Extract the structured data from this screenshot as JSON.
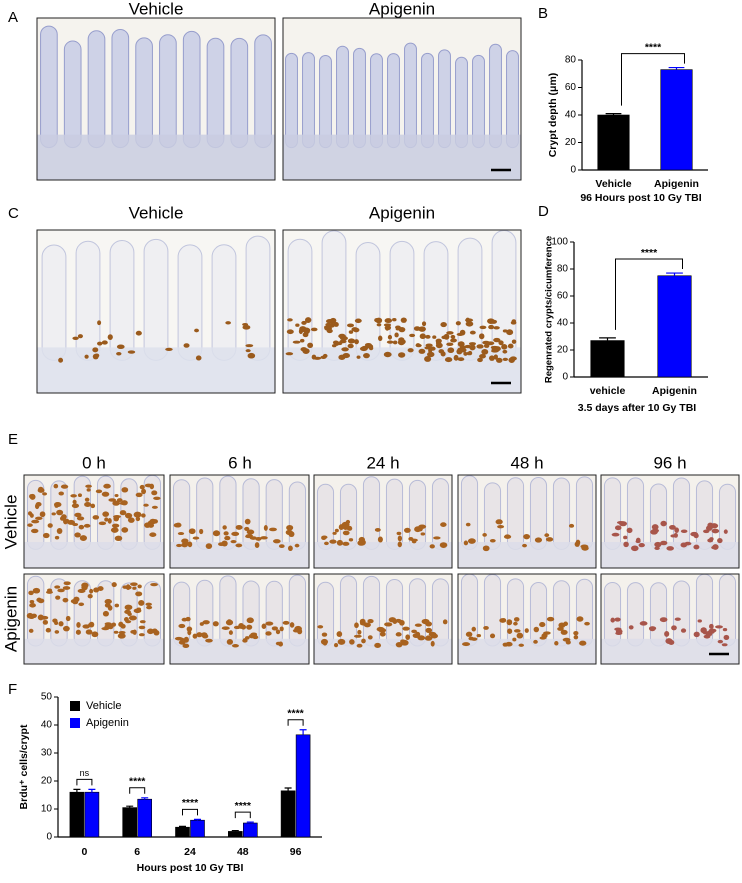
{
  "panel_labels": [
    "A",
    "B",
    "C",
    "D",
    "E",
    "F"
  ],
  "panel_a": {
    "images": [
      "Vehicle",
      "Apigenin"
    ]
  },
  "panel_c": {
    "images": [
      "Vehicle",
      "Apigenin"
    ]
  },
  "panel_e": {
    "columns": [
      "0 h",
      "6 h",
      "24 h",
      "48 h",
      "96 h"
    ],
    "rows": [
      "Vehicle",
      "Apigenin"
    ]
  },
  "chart_data": [
    {
      "type": "bar",
      "ylabel": "Crypt depth (μm)",
      "xlabel": "96 Hours post 10 Gy TBI",
      "categories": [
        "Vehicle",
        "Apigenin"
      ],
      "values": [
        40,
        73
      ],
      "errors": [
        1,
        1.5
      ],
      "colors": [
        "#000000",
        "#0000ff"
      ],
      "ylim": [
        0,
        80
      ],
      "yticks": [
        0,
        20,
        40,
        60,
        80
      ],
      "significance": "****"
    },
    {
      "type": "bar",
      "ylabel": "Regenrated crypts/cicumference",
      "xlabel": "3.5 days after 10 Gy TBI",
      "categories": [
        "vehicle",
        "Apigenin"
      ],
      "values": [
        27,
        75
      ],
      "errors": [
        2,
        2
      ],
      "colors": [
        "#000000",
        "#0000ff"
      ],
      "ylim": [
        0,
        100
      ],
      "yticks": [
        0,
        20,
        40,
        60,
        80,
        100
      ],
      "significance": "****"
    },
    {
      "type": "grouped_bar",
      "ylabel": "Brdu⁺ cells/crypt",
      "xlabel": "Hours post 10 Gy TBI",
      "categories": [
        "0",
        "6",
        "24",
        "48",
        "96"
      ],
      "series": [
        {
          "name": "Vehicle",
          "color": "#000000",
          "values": [
            16,
            10.5,
            3.5,
            2,
            16.5
          ],
          "errors": [
            1,
            0.5,
            0.3,
            0.3,
            1
          ]
        },
        {
          "name": "Apigenin",
          "color": "#0000ff",
          "values": [
            16,
            13.5,
            6,
            5,
            36.5
          ],
          "errors": [
            1,
            0.5,
            0.3,
            0.3,
            1.8
          ]
        }
      ],
      "ylim": [
        0,
        50
      ],
      "yticks": [
        0,
        10,
        20,
        30,
        40,
        50
      ],
      "legend": "upper left",
      "significance": [
        "ns",
        "****",
        "****",
        "****",
        "****"
      ]
    }
  ]
}
